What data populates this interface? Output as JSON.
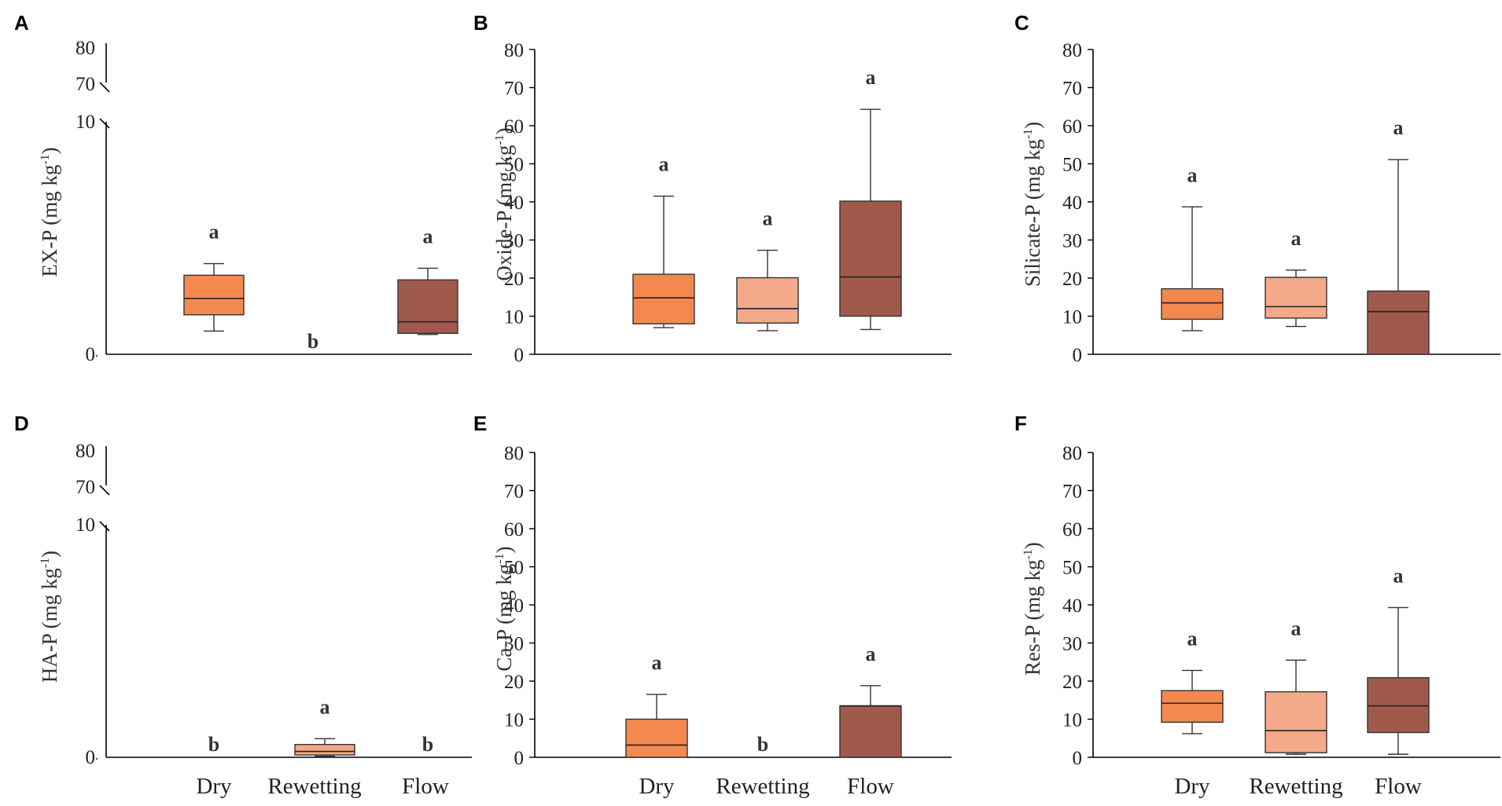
{
  "colors": {
    "Dry": "#F4894F",
    "Rewetting": "#F4A98A",
    "Flow": "#A05A4C"
  },
  "chart_data": [
    {
      "panel": "A",
      "type": "box",
      "ylabel": "EX-P (mg kg",
      "ylabel_sup": "-1",
      "ylabel_close": ")",
      "broken_axis": true,
      "ytick_labels": [
        "0",
        "10",
        "70",
        "80"
      ],
      "categories": [
        "Dry",
        "Rewetting",
        "Flow"
      ],
      "boxes": [
        {
          "category": "Dry",
          "min": 1.0,
          "q1": 1.7,
          "median": 2.4,
          "q3": 3.4,
          "max": 3.9,
          "sig": "a"
        },
        {
          "category": "Rewetting",
          "empty": true,
          "sig": "b"
        },
        {
          "category": "Flow",
          "min": 0.85,
          "q1": 0.9,
          "median": 1.4,
          "q3": 3.2,
          "max": 3.7,
          "sig": "a"
        }
      ]
    },
    {
      "panel": "B",
      "type": "box",
      "ylabel": "Oxide-P (mg kg",
      "ylabel_sup": "-1",
      "ylabel_close": ")",
      "ylim": [
        0,
        80
      ],
      "yticks": [
        0,
        10,
        20,
        30,
        40,
        50,
        60,
        70,
        80
      ],
      "categories": [
        "Dry",
        "Rewetting",
        "Flow"
      ],
      "boxes": [
        {
          "category": "Dry",
          "min": 7,
          "q1": 8,
          "median": 14.8,
          "q3": 21,
          "max": 41.5,
          "sig": "a"
        },
        {
          "category": "Rewetting",
          "min": 6.2,
          "q1": 8.2,
          "median": 12,
          "q3": 20.1,
          "max": 27.3,
          "sig": "a"
        },
        {
          "category": "Flow",
          "min": 6.5,
          "q1": 10,
          "median": 20.3,
          "q3": 40.2,
          "max": 64.3,
          "sig": "a"
        }
      ]
    },
    {
      "panel": "C",
      "type": "box",
      "ylabel": "Silicate-P (mg kg",
      "ylabel_sup": "-1",
      "ylabel_close": ")",
      "ylim": [
        0,
        80
      ],
      "yticks": [
        0,
        10,
        20,
        30,
        40,
        50,
        60,
        70,
        80
      ],
      "categories": [
        "Dry",
        "Rewetting",
        "Flow"
      ],
      "boxes": [
        {
          "category": "Dry",
          "min": 6.2,
          "q1": 9.2,
          "median": 13.5,
          "q3": 17.2,
          "max": 38.7,
          "sig": "a"
        },
        {
          "category": "Rewetting",
          "min": 7.3,
          "q1": 9.5,
          "median": 12.5,
          "q3": 20.2,
          "max": 22.1,
          "sig": "a"
        },
        {
          "category": "Flow",
          "min": 0,
          "q1": 0,
          "median": 11.2,
          "q3": 16.6,
          "max": 51.1,
          "sig": "a"
        }
      ]
    },
    {
      "panel": "D",
      "type": "box",
      "ylabel": "HA-P (mg kg",
      "ylabel_sup": "-1",
      "ylabel_close": ")",
      "broken_axis": true,
      "ytick_labels": [
        "0",
        "10",
        "70",
        "80"
      ],
      "categories": [
        "Dry",
        "Rewetting",
        "Flow"
      ],
      "boxes": [
        {
          "category": "Dry",
          "empty": true,
          "sig": "b"
        },
        {
          "category": "Rewetting",
          "min": 0.05,
          "q1": 0.1,
          "median": 0.25,
          "q3": 0.55,
          "max": 0.8,
          "sig": "a"
        },
        {
          "category": "Flow",
          "empty": true,
          "sig": "b"
        }
      ]
    },
    {
      "panel": "E",
      "type": "box",
      "ylabel": "Ca-P (mg kg",
      "ylabel_sup": "-1",
      "ylabel_close": ")",
      "ylim": [
        0,
        80
      ],
      "yticks": [
        0,
        10,
        20,
        30,
        40,
        50,
        60,
        70,
        80
      ],
      "categories": [
        "Dry",
        "Rewetting",
        "Flow"
      ],
      "boxes": [
        {
          "category": "Dry",
          "min": 0,
          "q1": 0,
          "median": 3.2,
          "q3": 10,
          "max": 16.5,
          "sig": "a"
        },
        {
          "category": "Rewetting",
          "empty": true,
          "sig": "b"
        },
        {
          "category": "Flow",
          "min": 0,
          "q1": 0,
          "median": 13.5,
          "q3": 13.5,
          "max": 18.8,
          "sig": "a"
        }
      ]
    },
    {
      "panel": "F",
      "type": "box",
      "ylabel": "Res-P (mg kg",
      "ylabel_sup": "-1",
      "ylabel_close": ")",
      "ylim": [
        0,
        80
      ],
      "yticks": [
        0,
        10,
        20,
        30,
        40,
        50,
        60,
        70,
        80
      ],
      "categories": [
        "Dry",
        "Rewetting",
        "Flow"
      ],
      "boxes": [
        {
          "category": "Dry",
          "min": 6.2,
          "q1": 9.2,
          "median": 14.2,
          "q3": 17.5,
          "max": 22.8,
          "sig": "a"
        },
        {
          "category": "Rewetting",
          "min": 0.8,
          "q1": 1.2,
          "median": 7,
          "q3": 17.2,
          "max": 25.5,
          "sig": "a"
        },
        {
          "category": "Flow",
          "min": 0.8,
          "q1": 6.5,
          "median": 13.5,
          "q3": 20.9,
          "max": 39.3,
          "sig": "a"
        }
      ]
    }
  ]
}
